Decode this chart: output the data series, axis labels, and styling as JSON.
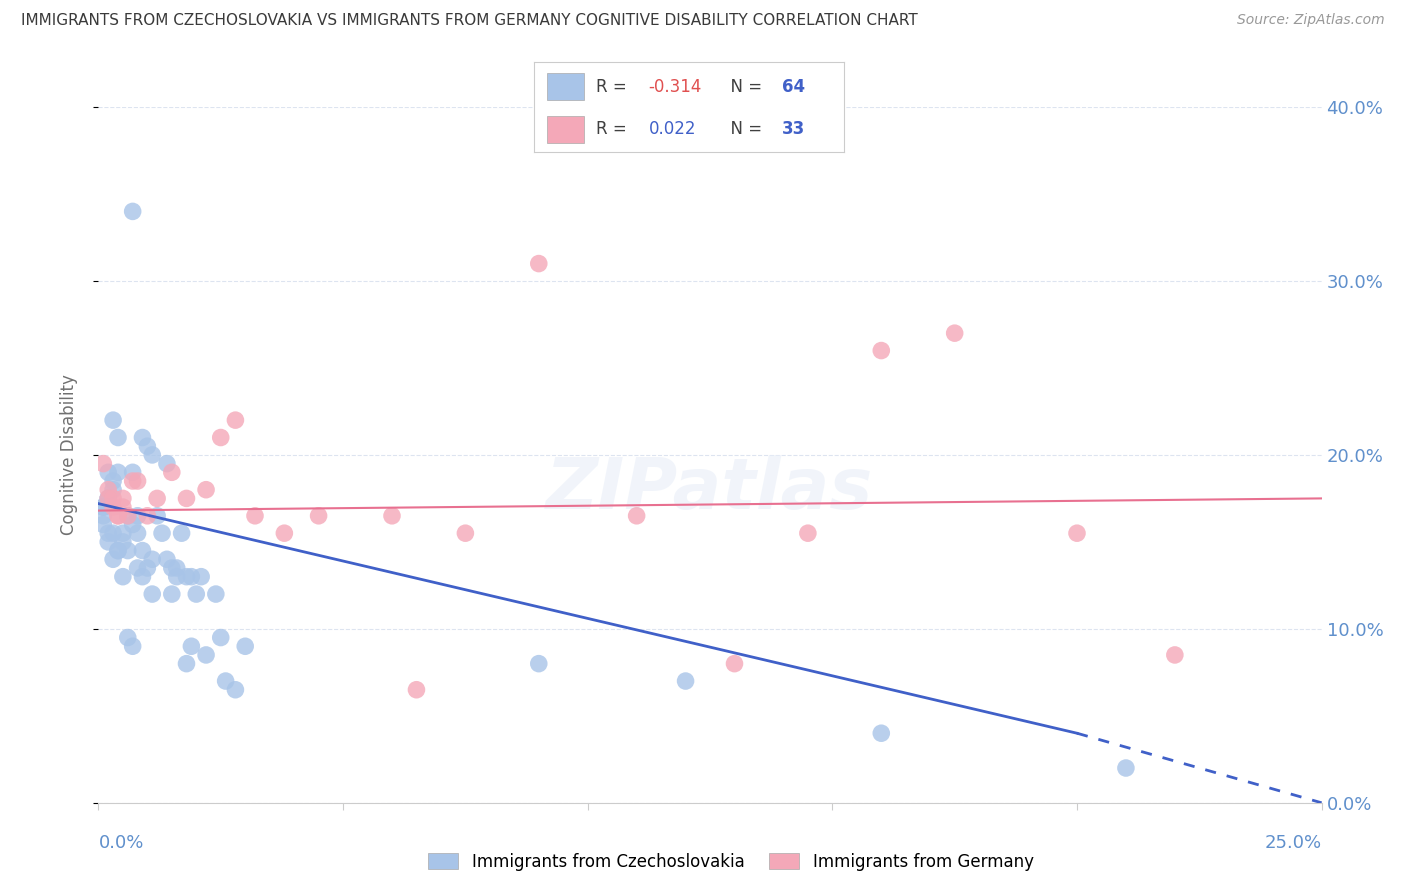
{
  "title": "IMMIGRANTS FROM CZECHOSLOVAKIA VS IMMIGRANTS FROM GERMANY COGNITIVE DISABILITY CORRELATION CHART",
  "source": "Source: ZipAtlas.com",
  "ylabel": "Cognitive Disability",
  "legend_blue_label": "Immigrants from Czechoslovakia",
  "legend_pink_label": "Immigrants from Germany",
  "blue_color": "#a8c4e8",
  "pink_color": "#f4a8b8",
  "blue_line_color": "#4060c8",
  "pink_line_color": "#e87090",
  "background_color": "#ffffff",
  "grid_color": "#dde4f0",
  "title_color": "#3a3a3a",
  "axis_label_color": "#6090cc",
  "xlim": [
    0.0,
    0.25
  ],
  "ylim": [
    0.0,
    0.4
  ],
  "blue_R_val": "-0.314",
  "blue_N_val": "64",
  "pink_R_val": "0.022",
  "pink_N_val": "33",
  "blue_scatter_x": [
    0.007,
    0.001,
    0.002,
    0.001,
    0.003,
    0.001,
    0.002,
    0.001,
    0.003,
    0.002,
    0.004,
    0.003,
    0.004,
    0.003,
    0.002,
    0.004,
    0.005,
    0.006,
    0.005,
    0.007,
    0.006,
    0.008,
    0.009,
    0.007,
    0.008,
    0.01,
    0.011,
    0.009,
    0.012,
    0.011,
    0.013,
    0.014,
    0.015,
    0.016,
    0.015,
    0.014,
    0.017,
    0.016,
    0.018,
    0.019,
    0.02,
    0.019,
    0.018,
    0.021,
    0.022,
    0.024,
    0.025,
    0.026,
    0.028,
    0.03,
    0.002,
    0.003,
    0.004,
    0.005,
    0.006,
    0.007,
    0.008,
    0.009,
    0.01,
    0.011,
    0.09,
    0.12,
    0.16,
    0.21
  ],
  "blue_scatter_y": [
    0.34,
    0.17,
    0.19,
    0.165,
    0.18,
    0.17,
    0.175,
    0.16,
    0.185,
    0.175,
    0.19,
    0.22,
    0.21,
    0.155,
    0.155,
    0.145,
    0.13,
    0.165,
    0.155,
    0.16,
    0.145,
    0.165,
    0.21,
    0.19,
    0.155,
    0.205,
    0.2,
    0.145,
    0.165,
    0.14,
    0.155,
    0.195,
    0.135,
    0.135,
    0.12,
    0.14,
    0.155,
    0.13,
    0.13,
    0.13,
    0.12,
    0.09,
    0.08,
    0.13,
    0.085,
    0.12,
    0.095,
    0.07,
    0.065,
    0.09,
    0.15,
    0.14,
    0.145,
    0.15,
    0.095,
    0.09,
    0.135,
    0.13,
    0.135,
    0.12,
    0.08,
    0.07,
    0.04,
    0.02
  ],
  "pink_scatter_x": [
    0.001,
    0.002,
    0.003,
    0.002,
    0.004,
    0.003,
    0.005,
    0.004,
    0.006,
    0.005,
    0.007,
    0.008,
    0.01,
    0.012,
    0.015,
    0.018,
    0.022,
    0.025,
    0.028,
    0.032,
    0.038,
    0.045,
    0.06,
    0.075,
    0.09,
    0.11,
    0.145,
    0.175,
    0.2,
    0.22,
    0.16,
    0.065,
    0.13
  ],
  "pink_scatter_y": [
    0.195,
    0.18,
    0.17,
    0.175,
    0.165,
    0.175,
    0.175,
    0.165,
    0.165,
    0.17,
    0.185,
    0.185,
    0.165,
    0.175,
    0.19,
    0.175,
    0.18,
    0.21,
    0.22,
    0.165,
    0.155,
    0.165,
    0.165,
    0.155,
    0.31,
    0.165,
    0.155,
    0.27,
    0.155,
    0.085,
    0.26,
    0.065,
    0.08
  ],
  "blue_line_x0": 0.0,
  "blue_line_y0": 0.172,
  "blue_line_x1": 0.2,
  "blue_line_y1": 0.04,
  "blue_line_x1_dash": 0.25,
  "blue_line_y1_dash": 0.0,
  "pink_line_x0": 0.0,
  "pink_line_y0": 0.168,
  "pink_line_x1": 0.25,
  "pink_line_y1": 0.175
}
